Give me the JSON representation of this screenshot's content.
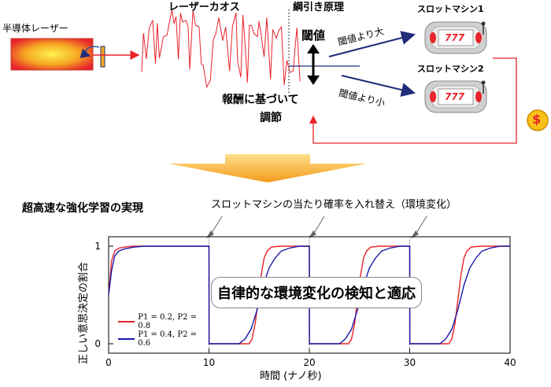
{
  "top": {
    "laser_label": "半導体レーザー",
    "chaos_label": "レーザーカオス",
    "tugofwar_label": "綱引き原理",
    "threshold_label": "閾値",
    "above_label": "閾値より大",
    "below_label": "閾値より小",
    "slot1_label": "スロットマシン1",
    "slot2_label": "スロットマシン2",
    "slot_digits": "777",
    "reward_line1": "報酬に基づいて",
    "reward_line2": "調節",
    "reward_symbol": "$"
  },
  "bottom": {
    "heading": "超高速な強化学習の実現",
    "swap_note": "スロットマシンの当たり確率を入れ替え（環境変化）",
    "detection_box": "自律的な環境変化の検知と適応"
  },
  "colors": {
    "red": "#e8232a",
    "blue": "#1a1aaa",
    "navy": "#1f2d7a",
    "orange": "#f5a623"
  },
  "chart_data": {
    "type": "line",
    "title": "",
    "xlabel": "時間 (ナノ秒)",
    "ylabel": "正しい意思決定の割合",
    "xlim": [
      0,
      40
    ],
    "ylim": [
      0,
      1
    ],
    "xticks": [
      0,
      10,
      20,
      30,
      40
    ],
    "yticks": [
      0,
      1
    ],
    "environment_changes": [
      10,
      20,
      30
    ],
    "legend_position": "bottom-left",
    "series": [
      {
        "name": "P1 = 0.2, P2 = 0.8",
        "color": "#e8232a",
        "x": [
          0,
          0.3,
          0.6,
          1.0,
          1.5,
          2.5,
          10,
          10.01,
          14.0,
          14.3,
          14.6,
          14.9,
          15.2,
          15.5,
          15.8,
          16.2,
          17.0,
          20,
          20.01,
          23.9,
          24.2,
          24.5,
          24.8,
          25.1,
          25.4,
          25.7,
          26.1,
          27.0,
          30,
          30.01,
          33.9,
          34.2,
          34.5,
          34.8,
          35.1,
          35.4,
          35.7,
          36.1,
          37.0,
          40
        ],
        "values": [
          0.5,
          0.85,
          0.95,
          0.98,
          0.99,
          1.0,
          1.0,
          0,
          0.0,
          0.05,
          0.2,
          0.45,
          0.7,
          0.88,
          0.95,
          0.99,
          1.0,
          1.0,
          0,
          0.0,
          0.05,
          0.2,
          0.45,
          0.7,
          0.88,
          0.95,
          0.99,
          1.0,
          1.0,
          0,
          0.0,
          0.05,
          0.2,
          0.45,
          0.7,
          0.88,
          0.95,
          0.99,
          1.0,
          1.0
        ]
      },
      {
        "name": "P1 = 0.4, P2 = 0.6",
        "color": "#1a1aaa",
        "x": [
          0,
          0.3,
          0.6,
          1.0,
          1.5,
          2.5,
          3.5,
          10,
          10.01,
          13.0,
          13.6,
          14.2,
          14.8,
          15.4,
          16.0,
          16.6,
          17.2,
          18.0,
          19.0,
          20,
          20.01,
          23.0,
          23.6,
          24.2,
          24.8,
          25.4,
          26.0,
          26.6,
          27.2,
          28.0,
          29.0,
          30,
          30.01,
          33.0,
          33.6,
          34.2,
          34.8,
          35.4,
          36.0,
          36.6,
          37.2,
          38.0,
          39.0,
          40
        ],
        "values": [
          0.5,
          0.75,
          0.9,
          0.95,
          0.97,
          0.99,
          1.0,
          1.0,
          0,
          0.0,
          0.05,
          0.15,
          0.35,
          0.6,
          0.78,
          0.88,
          0.95,
          0.98,
          1.0,
          1.0,
          0,
          0.0,
          0.05,
          0.15,
          0.35,
          0.6,
          0.78,
          0.88,
          0.95,
          0.98,
          1.0,
          1.0,
          0,
          0.0,
          0.05,
          0.15,
          0.35,
          0.6,
          0.78,
          0.88,
          0.95,
          0.98,
          1.0,
          1.0
        ]
      }
    ]
  }
}
